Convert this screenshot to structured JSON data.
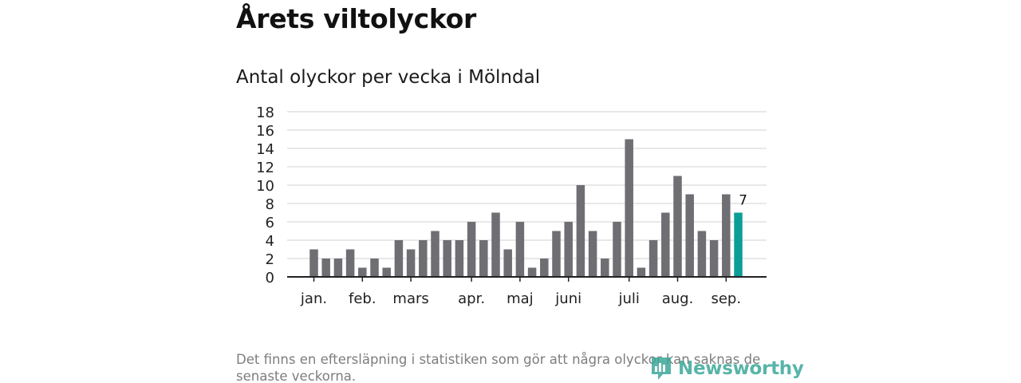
{
  "title": "Årets viltolyckor",
  "subtitle": "Antal olyckor per vecka i Mölndal",
  "footnote": "Det finns en eftersläpning i statistiken som gör att några olyckor kan saknas de senaste veckorna.",
  "logo": {
    "text": "Newsworthy",
    "icon": "newsworthy-logo-icon"
  },
  "colors": {
    "bar": "#6e6e73",
    "highlight": "#0b9e96",
    "grid": "#d9d9d9",
    "axis": "#222222"
  },
  "chart_data": {
    "type": "bar",
    "title": "Antal olyckor per vecka i Mölndal",
    "xlabel": "",
    "ylabel": "",
    "ylim": [
      0,
      18
    ],
    "yticks": [
      0,
      2,
      4,
      6,
      8,
      10,
      12,
      14,
      16,
      18
    ],
    "grid": true,
    "values": [
      3,
      2,
      2,
      3,
      1,
      2,
      1,
      4,
      3,
      4,
      5,
      4,
      4,
      6,
      4,
      7,
      3,
      6,
      1,
      2,
      5,
      6,
      10,
      5,
      2,
      6,
      15,
      1,
      4,
      7,
      11,
      9,
      5,
      4,
      9,
      7
    ],
    "highlight_index": 35,
    "highlight_label": "7",
    "month_ticks": [
      {
        "label": "jan.",
        "bar_index": 0
      },
      {
        "label": "feb.",
        "bar_index": 4
      },
      {
        "label": "mars",
        "bar_index": 8
      },
      {
        "label": "apr.",
        "bar_index": 13
      },
      {
        "label": "maj",
        "bar_index": 17
      },
      {
        "label": "juni",
        "bar_index": 21
      },
      {
        "label": "juli",
        "bar_index": 26
      },
      {
        "label": "aug.",
        "bar_index": 30
      },
      {
        "label": "sep.",
        "bar_index": 34
      }
    ]
  }
}
